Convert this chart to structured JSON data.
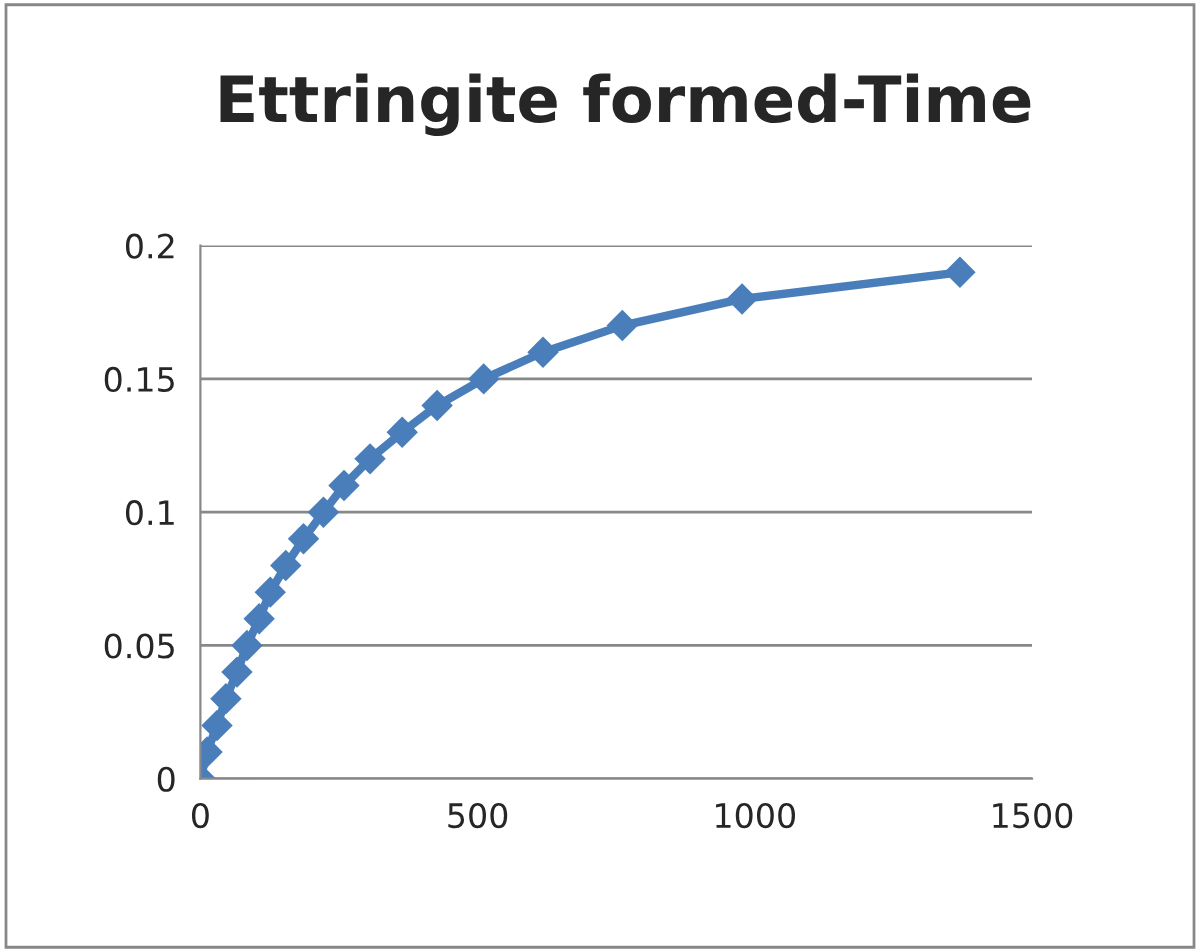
{
  "chart_data": {
    "type": "line",
    "title": "Ettringite formed-Time",
    "x": [
      0,
      12,
      30,
      46,
      66,
      84,
      106,
      126,
      154,
      186,
      222,
      259,
      306,
      364,
      427,
      511,
      618,
      761,
      977,
      1370
    ],
    "series": [
      {
        "color": "#4a7ebb",
        "values": [
          0,
          0.01,
          0.02,
          0.03,
          0.04,
          0.05,
          0.06,
          0.07,
          0.08,
          0.09,
          0.1,
          0.11,
          0.12,
          0.13,
          0.14,
          0.15,
          0.16,
          0.17,
          0.18,
          0.19
        ]
      }
    ],
    "xlim": [
      0,
      1500
    ],
    "xticks": [
      0,
      500,
      1000,
      1500
    ],
    "ylim": [
      0,
      0.2
    ],
    "yticks": [
      0,
      {
        "value": 0.05,
        "label": "0.05"
      },
      {
        "value": 0.1,
        "label": "0.1"
      },
      0.15,
      0.2
    ],
    "grid": "y",
    "marker": "diamond",
    "line_style": "solid"
  }
}
